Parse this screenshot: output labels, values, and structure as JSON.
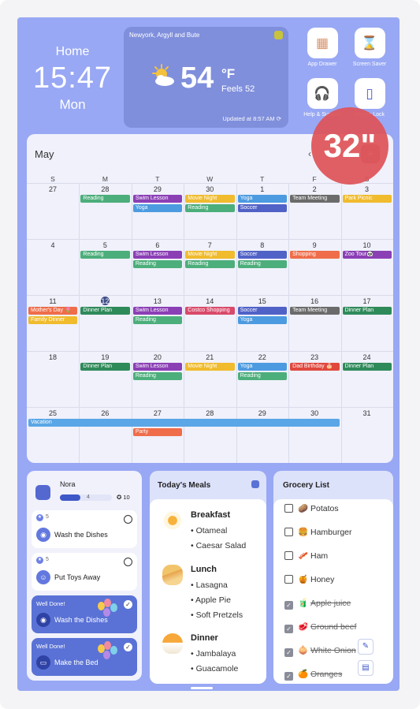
{
  "header": {
    "home_label": "Home",
    "time": "15:47",
    "day": "Mon"
  },
  "weather": {
    "location": "Newyork, Argyll and Bute",
    "temperature": "54",
    "unit": "°F",
    "feels": "Feels 52",
    "updated": "Updated at 8:57 AM",
    "icon": "partly-sunny-icon"
  },
  "apps": [
    {
      "label": "App Drawer",
      "icon": "app-drawer-icon"
    },
    {
      "label": "Screen Saver",
      "icon": "hourglass-icon"
    },
    {
      "label": "Help & Support",
      "icon": "headset-icon"
    },
    {
      "label": "Device Lock",
      "icon": "tablet-icon"
    }
  ],
  "badge": "32\"",
  "calendar": {
    "month": "May",
    "weekdays": [
      "S",
      "M",
      "T",
      "W",
      "T",
      "F",
      "S"
    ],
    "weeks": [
      [
        "27",
        "28",
        "29",
        "30",
        "1",
        "2",
        "3"
      ],
      [
        "4",
        "5",
        "6",
        "7",
        "8",
        "9",
        "10"
      ],
      [
        "11",
        "12",
        "13",
        "14",
        "15",
        "16",
        "17"
      ],
      [
        "18",
        "19",
        "20",
        "21",
        "22",
        "23",
        "24"
      ],
      [
        "25",
        "26",
        "27",
        "28",
        "29",
        "30",
        "31"
      ]
    ],
    "today": {
      "week": 2,
      "day": 1
    },
    "events": [
      {
        "week": 0,
        "day": 1,
        "slot": 0,
        "span": 1,
        "title": "Reading",
        "color": "#4cae7b"
      },
      {
        "week": 0,
        "day": 2,
        "slot": 0,
        "span": 1,
        "title": "Swim Lesson",
        "color": "#8b3fb5"
      },
      {
        "week": 0,
        "day": 2,
        "slot": 1,
        "span": 1,
        "title": "Yoga",
        "color": "#4c9be0"
      },
      {
        "week": 0,
        "day": 3,
        "slot": 0,
        "span": 1,
        "title": "Movie Night",
        "color": "#f0bb2d"
      },
      {
        "week": 0,
        "day": 3,
        "slot": 1,
        "span": 1,
        "title": "Reading",
        "color": "#4cae7b"
      },
      {
        "week": 0,
        "day": 4,
        "slot": 0,
        "span": 1,
        "title": "Yoga",
        "color": "#4c9be0"
      },
      {
        "week": 0,
        "day": 4,
        "slot": 1,
        "span": 1,
        "title": "Soccer",
        "color": "#5162c7"
      },
      {
        "week": 0,
        "day": 5,
        "slot": 0,
        "span": 1,
        "title": "Team Meeting",
        "color": "#6b6b6b"
      },
      {
        "week": 0,
        "day": 6,
        "slot": 0,
        "span": 1,
        "title": "Park Picnic",
        "color": "#f0bb2d"
      },
      {
        "week": 1,
        "day": 1,
        "slot": 0,
        "span": 1,
        "title": "Reading",
        "color": "#4cae7b"
      },
      {
        "week": 1,
        "day": 2,
        "slot": 0,
        "span": 1,
        "title": "Swim Lesson",
        "color": "#8b3fb5"
      },
      {
        "week": 1,
        "day": 2,
        "slot": 1,
        "span": 1,
        "title": "Reading",
        "color": "#4cae7b"
      },
      {
        "week": 1,
        "day": 3,
        "slot": 0,
        "span": 1,
        "title": "Movie Night",
        "color": "#f0bb2d"
      },
      {
        "week": 1,
        "day": 3,
        "slot": 1,
        "span": 1,
        "title": "Reading",
        "color": "#4cae7b"
      },
      {
        "week": 1,
        "day": 4,
        "slot": 0,
        "span": 1,
        "title": "Soccer",
        "color": "#5162c7"
      },
      {
        "week": 1,
        "day": 4,
        "slot": 1,
        "span": 1,
        "title": "Reading",
        "color": "#4cae7b"
      },
      {
        "week": 1,
        "day": 5,
        "slot": 0,
        "span": 1,
        "title": "Shopping",
        "color": "#ef6d4a"
      },
      {
        "week": 1,
        "day": 6,
        "slot": 0,
        "span": 1,
        "title": "Zoo Tour🐼",
        "color": "#8b3fb5"
      },
      {
        "week": 2,
        "day": 0,
        "slot": 0,
        "span": 1,
        "title": "Mother's Day 🌷",
        "color": "#ef6d4a"
      },
      {
        "week": 2,
        "day": 0,
        "slot": 1,
        "span": 1,
        "title": "Family Dinner",
        "color": "#f0bb2d"
      },
      {
        "week": 2,
        "day": 1,
        "slot": 0,
        "span": 1,
        "title": "Dinner Plan",
        "color": "#2f8a5a"
      },
      {
        "week": 2,
        "day": 2,
        "slot": 0,
        "span": 1,
        "title": "Swim Lesson",
        "color": "#8b3fb5"
      },
      {
        "week": 2,
        "day": 2,
        "slot": 1,
        "span": 1,
        "title": "Reading",
        "color": "#4cae7b"
      },
      {
        "week": 2,
        "day": 3,
        "slot": 0,
        "span": 1,
        "title": "Costco Shopping",
        "color": "#d94a6a"
      },
      {
        "week": 2,
        "day": 4,
        "slot": 0,
        "span": 1,
        "title": "Soccer",
        "color": "#5162c7"
      },
      {
        "week": 2,
        "day": 4,
        "slot": 1,
        "span": 1,
        "title": "Yoga",
        "color": "#4c9be0"
      },
      {
        "week": 2,
        "day": 5,
        "slot": 0,
        "span": 1,
        "title": "Team Meeting",
        "color": "#6b6b6b"
      },
      {
        "week": 2,
        "day": 6,
        "slot": 0,
        "span": 1,
        "title": "Dinner Plan",
        "color": "#2f8a5a"
      },
      {
        "week": 3,
        "day": 1,
        "slot": 0,
        "span": 1,
        "title": "Dinner Plan",
        "color": "#2f8a5a"
      },
      {
        "week": 3,
        "day": 2,
        "slot": 0,
        "span": 1,
        "title": "Swim Lesson",
        "color": "#8b3fb5"
      },
      {
        "week": 3,
        "day": 2,
        "slot": 1,
        "span": 1,
        "title": "Reading",
        "color": "#4cae7b"
      },
      {
        "week": 3,
        "day": 3,
        "slot": 0,
        "span": 1,
        "title": "Movie Night",
        "color": "#f0bb2d"
      },
      {
        "week": 3,
        "day": 4,
        "slot": 0,
        "span": 1,
        "title": "Yoga",
        "color": "#4c9be0"
      },
      {
        "week": 3,
        "day": 4,
        "slot": 1,
        "span": 1,
        "title": "Reading",
        "color": "#4cae7b"
      },
      {
        "week": 3,
        "day": 5,
        "slot": 0,
        "span": 1,
        "title": "Dad Birthday 🎂",
        "color": "#e0483e"
      },
      {
        "week": 3,
        "day": 6,
        "slot": 0,
        "span": 1,
        "title": "Dinner Plan",
        "color": "#2f8a5a"
      },
      {
        "week": 4,
        "day": 0,
        "slot": 0,
        "span": 6,
        "title": "Vacation",
        "color": "#5aa6e6"
      },
      {
        "week": 4,
        "day": 2,
        "slot": 1,
        "span": 1,
        "title": "Party",
        "color": "#ef6d4a"
      }
    ]
  },
  "profile": {
    "name": "Nora",
    "progress_count": "4",
    "progress_fraction": 0.4,
    "stars": "10"
  },
  "tasks": [
    {
      "points": "5",
      "label": "Wash the Dishes",
      "done": false,
      "icon": "dishes-icon"
    },
    {
      "points": "5",
      "label": "Put Toys Away",
      "done": false,
      "icon": "toy-icon"
    },
    {
      "done_label": "Well Done!",
      "label": "Wash the Dishes",
      "done": true,
      "icon": "dishes-icon"
    },
    {
      "done_label": "Well Done!",
      "label": "Make the Bed",
      "done": true,
      "icon": "bed-icon"
    }
  ],
  "meals": {
    "title": "Today's Meals",
    "items": [
      {
        "name": "Breakfast",
        "dishes": [
          "• Otameal",
          "• Caesar Salad"
        ],
        "icon": "egg-icon"
      },
      {
        "name": "Lunch",
        "dishes": [
          "• Lasagna",
          "• Apple Pie",
          "• Soft Pretzels"
        ],
        "icon": "sandwich-icon"
      },
      {
        "name": "Dinner",
        "dishes": [
          "• Jambalaya",
          "• Guacamole"
        ],
        "icon": "rice-bowl-icon"
      }
    ]
  },
  "grocery": {
    "title": "Grocery List",
    "items": [
      {
        "emoji": "🥔",
        "name": "Potatos",
        "checked": false
      },
      {
        "emoji": "🍔",
        "name": "Hamburger",
        "checked": false
      },
      {
        "emoji": "🥓",
        "name": "Ham",
        "checked": false
      },
      {
        "emoji": "🍯",
        "name": "Honey",
        "checked": false
      },
      {
        "emoji": "🧃",
        "name": "Apple juice",
        "checked": true
      },
      {
        "emoji": "🥩",
        "name": "Ground beef",
        "checked": true
      },
      {
        "emoji": "🧅",
        "name": "White Onion",
        "checked": true
      },
      {
        "emoji": "🍊",
        "name": "Oranges",
        "checked": true
      }
    ]
  }
}
